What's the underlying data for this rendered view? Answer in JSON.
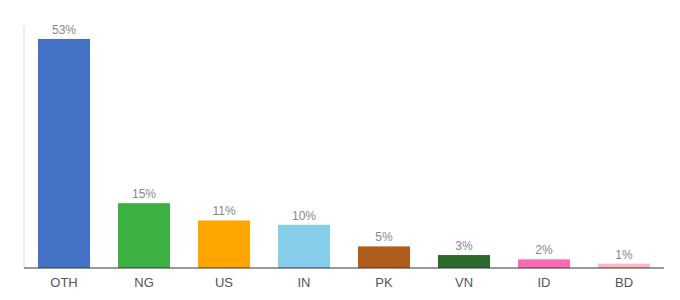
{
  "chart_data": {
    "type": "bar",
    "categories": [
      "OTH",
      "NG",
      "US",
      "IN",
      "PK",
      "VN",
      "ID",
      "BD"
    ],
    "values": [
      53,
      15,
      11,
      10,
      5,
      3,
      2,
      1
    ],
    "value_labels": [
      "53%",
      "15%",
      "11%",
      "10%",
      "5%",
      "3%",
      "2%",
      "1%"
    ],
    "colors": [
      "#4472c4",
      "#3cb043",
      "#ffa500",
      "#87ceeb",
      "#b05c1a",
      "#2d6b2d",
      "#ff69b4",
      "#ffb6c1"
    ],
    "ylim": [
      0,
      56
    ],
    "grid": false,
    "data_labels": true,
    "tick_labels": "x"
  }
}
